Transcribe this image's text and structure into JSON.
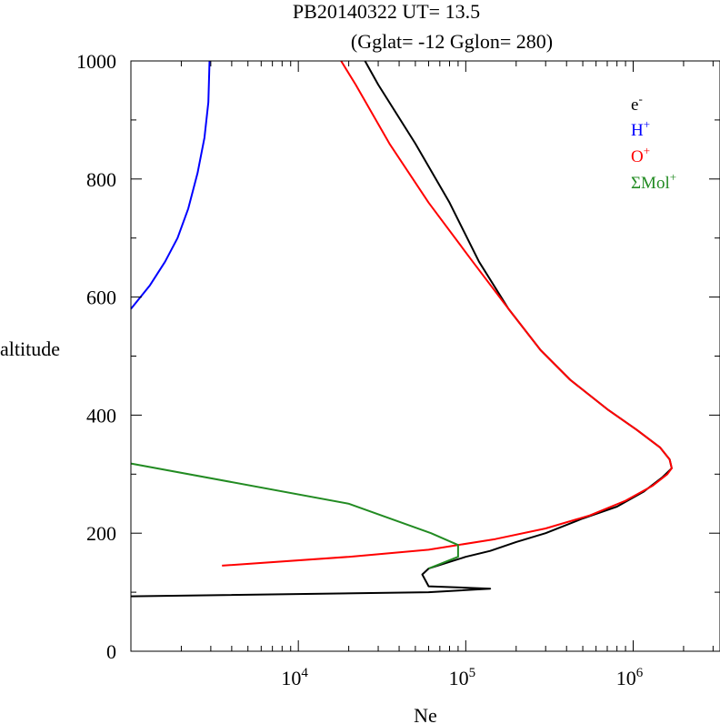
{
  "chart_data": {
    "type": "line",
    "title_line1": "PB20140322   UT=  13.5",
    "title_line2": "(Gglat= -12   Gglon=  280)",
    "xlabel": "Ne",
    "ylabel": "altitude",
    "x_scale": "log",
    "xlim": [
      1000,
      3300000
    ],
    "ylim": [
      0,
      1000
    ],
    "y_ticks": [
      0,
      200,
      400,
      600,
      800,
      1000
    ],
    "x_ticks": [
      {
        "value": 10000,
        "base": "10",
        "exp": "4"
      },
      {
        "value": 100000,
        "base": "10",
        "exp": "5"
      },
      {
        "value": 1000000,
        "base": "10",
        "exp": "6"
      }
    ],
    "grid": false,
    "legend_position": "top-right",
    "series": [
      {
        "name": "e",
        "sup": "-",
        "color": "#000000",
        "points": [
          [
            1000,
            93
          ],
          [
            60000,
            100
          ],
          [
            140000,
            106
          ],
          [
            60000,
            110
          ],
          [
            55000,
            130
          ],
          [
            60000,
            140
          ],
          [
            100000,
            160
          ],
          [
            140000,
            170
          ],
          [
            200000,
            185
          ],
          [
            300000,
            200
          ],
          [
            500000,
            225
          ],
          [
            800000,
            245
          ],
          [
            1150000,
            270
          ],
          [
            1500000,
            295
          ],
          [
            1700000,
            310
          ],
          [
            1650000,
            325
          ],
          [
            1450000,
            345
          ],
          [
            1050000,
            375
          ],
          [
            700000,
            410
          ],
          [
            420000,
            460
          ],
          [
            280000,
            510
          ],
          [
            180000,
            580
          ],
          [
            120000,
            660
          ],
          [
            80000,
            760
          ],
          [
            50000,
            860
          ],
          [
            30000,
            960
          ],
          [
            25000,
            1000
          ]
        ]
      },
      {
        "name": "H",
        "sup": "+",
        "color": "#0000ff",
        "points": [
          [
            1000,
            580
          ],
          [
            1300,
            620
          ],
          [
            1600,
            660
          ],
          [
            1900,
            700
          ],
          [
            2200,
            750
          ],
          [
            2500,
            810
          ],
          [
            2750,
            870
          ],
          [
            2900,
            930
          ],
          [
            2950,
            1000
          ]
        ]
      },
      {
        "name": "O",
        "sup": "+",
        "color": "#ff0000",
        "points": [
          [
            3500,
            145
          ],
          [
            20000,
            160
          ],
          [
            60000,
            172
          ],
          [
            150000,
            190
          ],
          [
            300000,
            208
          ],
          [
            550000,
            230
          ],
          [
            900000,
            255
          ],
          [
            1300000,
            280
          ],
          [
            1600000,
            300
          ],
          [
            1700000,
            310
          ],
          [
            1650000,
            325
          ],
          [
            1450000,
            345
          ],
          [
            1050000,
            375
          ],
          [
            700000,
            410
          ],
          [
            420000,
            460
          ],
          [
            280000,
            510
          ],
          [
            180000,
            580
          ],
          [
            110000,
            660
          ],
          [
            60000,
            760
          ],
          [
            35000,
            860
          ],
          [
            22000,
            960
          ],
          [
            18000,
            1000
          ]
        ]
      },
      {
        "name": "ΣMol",
        "sup": "+",
        "color": "#228B22",
        "points": [
          [
            1000,
            318
          ],
          [
            20000,
            250
          ],
          [
            62000,
            200
          ],
          [
            90000,
            180
          ],
          [
            90000,
            160
          ],
          [
            60000,
            140
          ]
        ]
      }
    ]
  }
}
